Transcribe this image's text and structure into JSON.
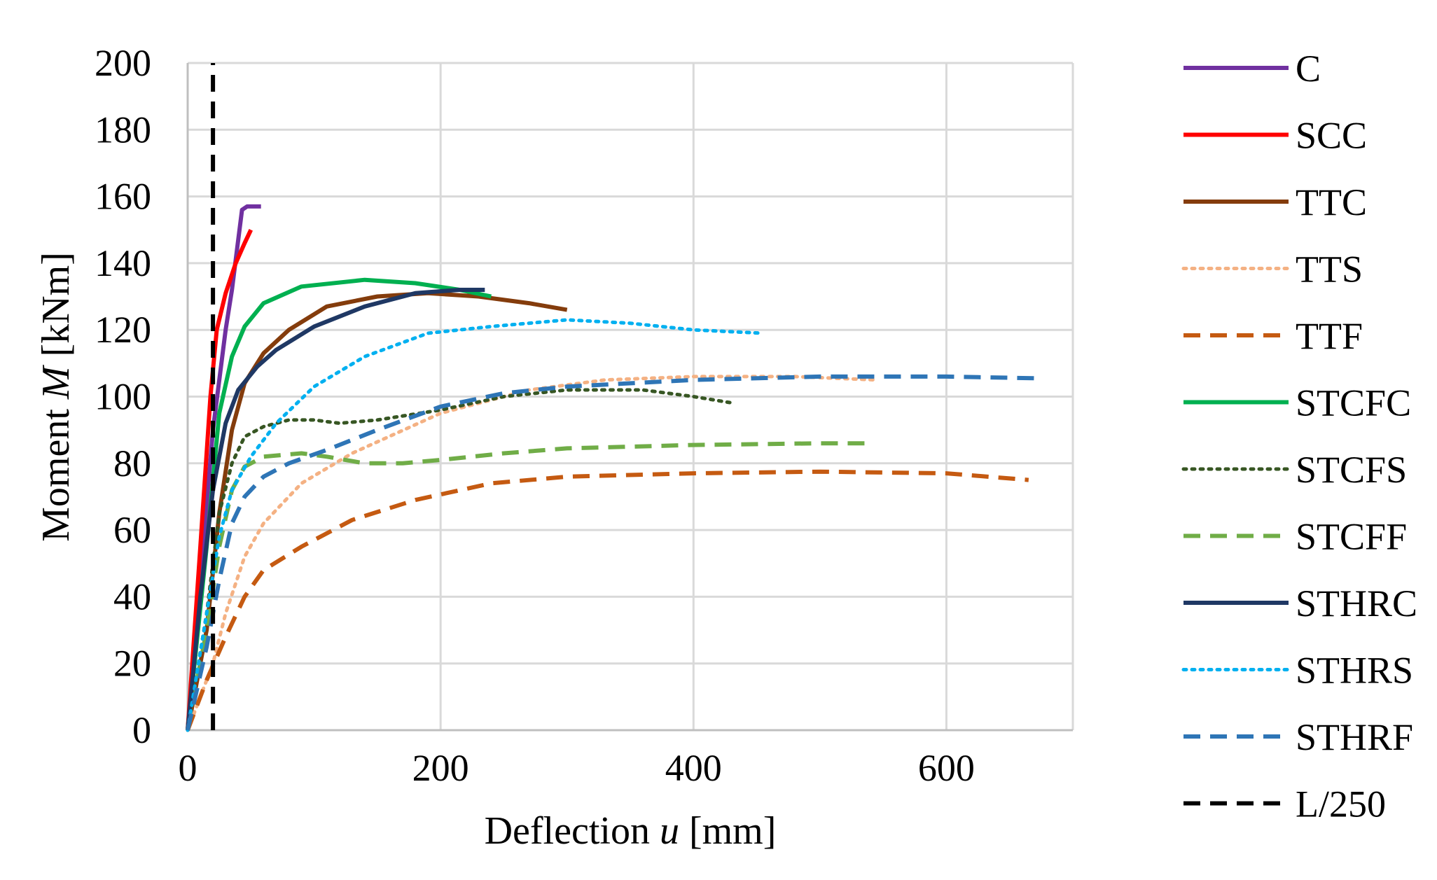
{
  "chart_data": {
    "type": "line",
    "title": "",
    "xlabel": {
      "prefix": "Deflection ",
      "symbol": "u",
      "suffix": " [mm]"
    },
    "ylabel": {
      "prefix": "Moment ",
      "symbol": "M",
      "suffix": " [kNm]"
    },
    "xlim": [
      0,
      700
    ],
    "ylim": [
      0,
      200
    ],
    "xticks": [
      0,
      200,
      400,
      600
    ],
    "yticks": [
      0,
      20,
      40,
      60,
      80,
      100,
      120,
      140,
      160,
      180,
      200
    ],
    "grid": true,
    "legend_position": "right",
    "series": [
      {
        "name": "C",
        "color": "#7030A0",
        "dash": "solid",
        "points": [
          [
            0,
            0
          ],
          [
            10,
            45
          ],
          [
            20,
            90
          ],
          [
            30,
            120
          ],
          [
            35,
            132
          ],
          [
            40,
            147
          ],
          [
            43,
            156
          ],
          [
            47,
            157
          ],
          [
            52,
            157
          ],
          [
            58,
            157
          ]
        ]
      },
      {
        "name": "SCC",
        "color": "#FF0000",
        "dash": "solid",
        "points": [
          [
            0,
            0
          ],
          [
            10,
            55
          ],
          [
            18,
            100
          ],
          [
            23,
            120
          ],
          [
            30,
            131
          ],
          [
            38,
            140
          ],
          [
            45,
            146
          ],
          [
            50,
            150
          ]
        ]
      },
      {
        "name": "TTC",
        "color": "#843C0C",
        "dash": "solid",
        "points": [
          [
            0,
            0
          ],
          [
            15,
            30
          ],
          [
            25,
            65
          ],
          [
            35,
            90
          ],
          [
            45,
            104
          ],
          [
            60,
            113
          ],
          [
            80,
            120
          ],
          [
            110,
            127
          ],
          [
            150,
            130
          ],
          [
            190,
            131
          ],
          [
            230,
            130
          ],
          [
            270,
            128
          ],
          [
            300,
            126
          ]
        ]
      },
      {
        "name": "TTS",
        "color": "#F4B183",
        "dash": "dotted",
        "points": [
          [
            0,
            0
          ],
          [
            20,
            20
          ],
          [
            30,
            35
          ],
          [
            45,
            52
          ],
          [
            60,
            62
          ],
          [
            90,
            74
          ],
          [
            130,
            83
          ],
          [
            200,
            95
          ],
          [
            270,
            102
          ],
          [
            330,
            105
          ],
          [
            400,
            106
          ],
          [
            480,
            106
          ],
          [
            545,
            105
          ]
        ]
      },
      {
        "name": "TTF",
        "color": "#C55A11",
        "dash": "dashed",
        "points": [
          [
            0,
            0
          ],
          [
            15,
            15
          ],
          [
            30,
            28
          ],
          [
            45,
            40
          ],
          [
            60,
            48
          ],
          [
            90,
            55
          ],
          [
            130,
            63
          ],
          [
            180,
            69
          ],
          [
            240,
            74
          ],
          [
            300,
            76
          ],
          [
            400,
            77
          ],
          [
            500,
            77.5
          ],
          [
            600,
            77
          ],
          [
            665,
            75
          ]
        ]
      },
      {
        "name": "STCFC",
        "color": "#00B050",
        "dash": "solid",
        "points": [
          [
            0,
            0
          ],
          [
            15,
            55
          ],
          [
            25,
            95
          ],
          [
            35,
            112
          ],
          [
            45,
            121
          ],
          [
            60,
            128
          ],
          [
            90,
            133
          ],
          [
            140,
            135
          ],
          [
            180,
            134
          ],
          [
            215,
            132
          ],
          [
            240,
            130
          ]
        ]
      },
      {
        "name": "STCFS",
        "color": "#375623",
        "dash": "dotted",
        "points": [
          [
            0,
            0
          ],
          [
            15,
            35
          ],
          [
            25,
            65
          ],
          [
            35,
            80
          ],
          [
            45,
            88
          ],
          [
            60,
            91
          ],
          [
            80,
            93
          ],
          [
            100,
            93
          ],
          [
            120,
            92
          ],
          [
            150,
            93
          ],
          [
            200,
            96
          ],
          [
            250,
            100
          ],
          [
            300,
            102
          ],
          [
            360,
            102
          ],
          [
            400,
            100
          ],
          [
            432,
            98
          ]
        ]
      },
      {
        "name": "STCFF",
        "color": "#70AD47",
        "dash": "dashed",
        "points": [
          [
            0,
            0
          ],
          [
            15,
            30
          ],
          [
            25,
            55
          ],
          [
            35,
            72
          ],
          [
            45,
            79
          ],
          [
            60,
            82
          ],
          [
            90,
            83
          ],
          [
            110,
            82
          ],
          [
            140,
            80
          ],
          [
            170,
            80
          ],
          [
            200,
            81
          ],
          [
            250,
            83
          ],
          [
            300,
            84.5
          ],
          [
            400,
            85.5
          ],
          [
            500,
            86
          ],
          [
            540,
            86
          ]
        ]
      },
      {
        "name": "STHRC",
        "color": "#1F3864",
        "dash": "solid",
        "points": [
          [
            0,
            0
          ],
          [
            10,
            40
          ],
          [
            20,
            72
          ],
          [
            30,
            92
          ],
          [
            40,
            102
          ],
          [
            55,
            109
          ],
          [
            70,
            114
          ],
          [
            100,
            121
          ],
          [
            140,
            127
          ],
          [
            180,
            131
          ],
          [
            215,
            132
          ],
          [
            235,
            132
          ]
        ]
      },
      {
        "name": "STHRS",
        "color": "#00B0F0",
        "dash": "dotted",
        "points": [
          [
            0,
            0
          ],
          [
            15,
            35
          ],
          [
            25,
            58
          ],
          [
            35,
            72
          ],
          [
            50,
            82
          ],
          [
            70,
            92
          ],
          [
            100,
            103
          ],
          [
            140,
            112
          ],
          [
            190,
            119
          ],
          [
            240,
            121
          ],
          [
            300,
            123
          ],
          [
            350,
            122
          ],
          [
            400,
            120
          ],
          [
            455,
            119
          ]
        ]
      },
      {
        "name": "STHRF",
        "color": "#2E75B6",
        "dash": "dashed",
        "points": [
          [
            0,
            0
          ],
          [
            15,
            25
          ],
          [
            25,
            45
          ],
          [
            35,
            62
          ],
          [
            45,
            70
          ],
          [
            60,
            76
          ],
          [
            80,
            80
          ],
          [
            110,
            84
          ],
          [
            150,
            90
          ],
          [
            200,
            97
          ],
          [
            250,
            101
          ],
          [
            300,
            103
          ],
          [
            400,
            105
          ],
          [
            500,
            106
          ],
          [
            600,
            106
          ],
          [
            670,
            105.5
          ]
        ]
      },
      {
        "name": "L/250",
        "color": "#000000",
        "dash": "dashed",
        "points": [
          [
            20,
            0
          ],
          [
            20,
            200
          ]
        ]
      }
    ]
  }
}
